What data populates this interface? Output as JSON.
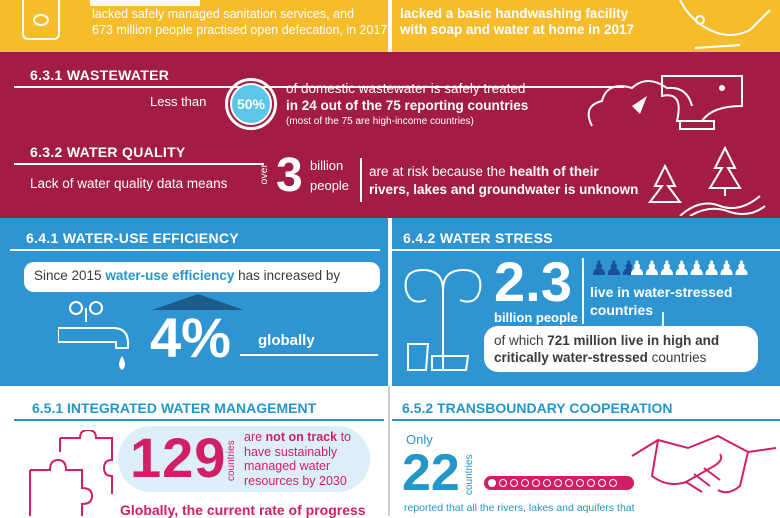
{
  "top": {
    "left_text_1": "lacked safely managed sanitation services, and",
    "left_text_2": "673 million people practised open defecation, in 2017",
    "right_text_1": "lacked a basic handwashing facility",
    "right_text_2": "with soap and water at home in 2017"
  },
  "wastewater": {
    "title": "6.3.1 WASTEWATER",
    "less_than": "Less than",
    "percent": "50%",
    "line1": "of domestic wastewater is safely treated",
    "line2": "in 24 out of the 75 reporting countries",
    "line3": "(most of the 75 are high-income countries)"
  },
  "water_quality": {
    "title": "6.3.2 WATER QUALITY",
    "lead": "Lack of water quality data means",
    "over": "over",
    "number": "3",
    "billion": "billion",
    "people": "people",
    "risk_1a": "are at risk because the ",
    "risk_1b": "health of their",
    "risk_2": "rivers, lakes and groundwater is unknown"
  },
  "efficiency": {
    "title": "6.4.1 WATER-USE EFFICIENCY",
    "since_a": "Since 2015 ",
    "since_b": "water-use efficiency",
    "since_c": " has increased by",
    "percent": "4%",
    "globally": "globally"
  },
  "stress": {
    "title": "6.4.2 WATER STRESS",
    "number": "2.3",
    "billion_people": "billion people",
    "live_1": "live in water-stressed",
    "live_2": "countries",
    "of_which_a": "of which ",
    "of_which_b": "721 million live in high and",
    "of_which_c": "critically water-stressed",
    "of_which_d": " countries"
  },
  "iwrm": {
    "title": "6.5.1 INTEGRATED WATER MANAGEMENT",
    "number": "129",
    "countries": "countries",
    "line1a": "are ",
    "line1b": "not on track",
    "line1c": " to",
    "line2": "have sustainably",
    "line3": "managed water",
    "line4": "resources by 2030",
    "bottom": "Globally, the current rate of progress"
  },
  "transboundary": {
    "title": "6.5.2 TRANSBOUNDARY COOPERATION",
    "only": "Only",
    "number": "22",
    "countries": "countries",
    "bottom": "reported that all the rivers, lakes and aquifers that"
  },
  "colors": {
    "yellow": "#f5bd2c",
    "maroon": "#a21c43",
    "blue": "#2f95d2",
    "pink": "#d11f66",
    "teal": "#2496c9"
  }
}
